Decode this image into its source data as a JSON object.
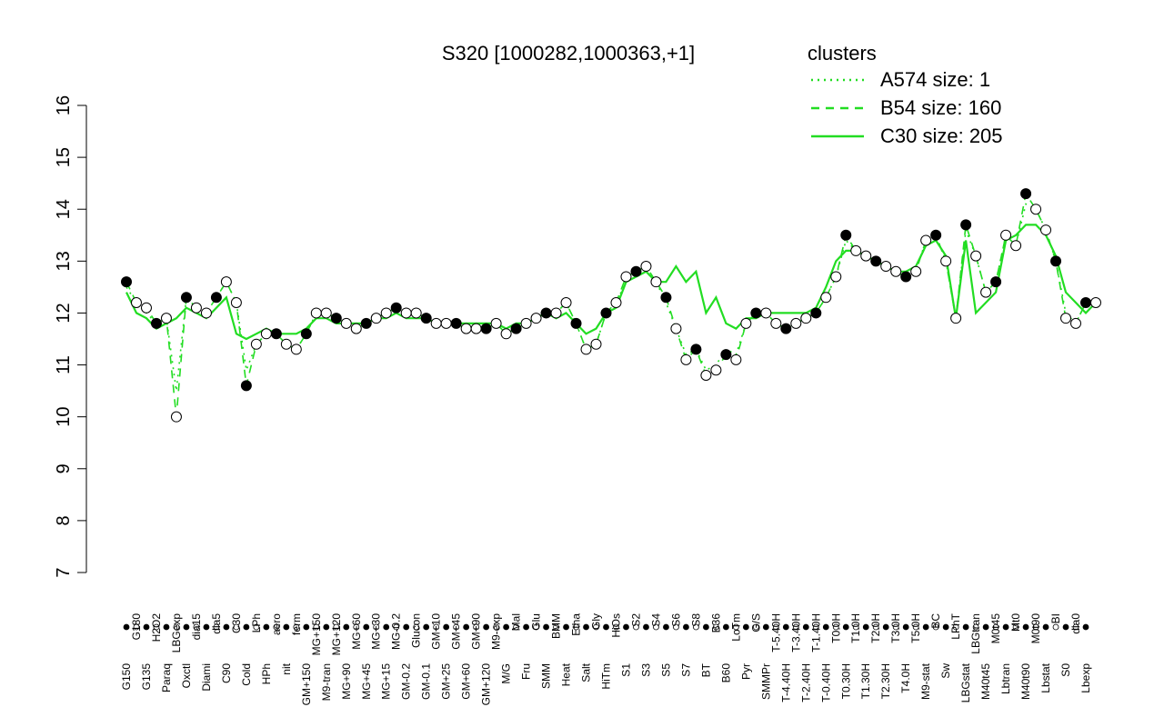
{
  "chart_data": {
    "type": "line",
    "title": "S320 [1000282,1000363,+1]",
    "xlabel": "",
    "ylabel": "",
    "ylim": [
      7,
      16
    ],
    "yticks": [
      7,
      8,
      9,
      10,
      11,
      12,
      13,
      14,
      15,
      16
    ],
    "grid": false,
    "legend": {
      "title": "clusters",
      "placement": "top-right",
      "color": "#22dd22",
      "entries": [
        {
          "label": "A574 size: 1",
          "style": "dotted"
        },
        {
          "label": "B54 size: 160",
          "style": "dashed"
        },
        {
          "label": "C30 size: 205",
          "style": "solid"
        }
      ]
    },
    "x_tick_labels": [
      "G150",
      "G180",
      "G135",
      "H2O2",
      "Paraq",
      "LBGexp",
      "Oxctl",
      "dia15",
      "Diami",
      "dia5",
      "C90",
      "C30",
      "Cold",
      "LPh",
      "HPh",
      "aero",
      "nit",
      "ferm",
      "GM+150",
      "MG+150",
      "M9-tran",
      "MG+120",
      "MG+90",
      "MG+60",
      "MG+45",
      "MG+30",
      "MG+15",
      "MG-0.2",
      "GM-0.2",
      "Glucon",
      "GM-0.1",
      "GM+10",
      "GM+25",
      "GM+45",
      "GM+60",
      "GM+90",
      "GM+120",
      "M9-exp",
      "M/G",
      "Mal",
      "Fru",
      "Glu",
      "SMM",
      "BMM",
      "Heat",
      "Etha",
      "Salt",
      "Gly",
      "HiTm",
      "HiOs",
      "S1",
      "S2",
      "S3",
      "S4",
      "S5",
      "S6",
      "S7",
      "S8",
      "BT",
      "B36",
      "B60",
      "LoTm",
      "Pyr",
      "G/S",
      "SMMPr",
      "T-5.40H",
      "T-4.40H",
      "T-3.40H",
      "T-2.40H",
      "T-1.40H",
      "T-0.40H",
      "T0.0H",
      "T0.30H",
      "T1.0H",
      "T1.30H",
      "T2.0H",
      "T2.30H",
      "T3.0H",
      "T4.0H",
      "T5.0H",
      "M9-stat",
      "BC",
      "Sw",
      "LPhT",
      "LBGstat",
      "LBGtran",
      "M40t45",
      "M0t45",
      "Lbtran",
      "Mt0",
      "M40t90",
      "M0t90",
      "Lbstat",
      "BI",
      "S0",
      "dia0",
      "Lbexp"
    ],
    "x": [
      0,
      1,
      2,
      3,
      4,
      5,
      6,
      7,
      8,
      9,
      10,
      11,
      12,
      13,
      14,
      15,
      16,
      17,
      18,
      19,
      20,
      21,
      22,
      23,
      24,
      25,
      26,
      27,
      28,
      29,
      30,
      31,
      32,
      33,
      34,
      35,
      36,
      37,
      38,
      39,
      40,
      41,
      42,
      43,
      44,
      45,
      46,
      47,
      48,
      49,
      50,
      51,
      52,
      53,
      54,
      55,
      56,
      57,
      58,
      59,
      60,
      61,
      62,
      63,
      64,
      65,
      66,
      67,
      68,
      69,
      70,
      71,
      72,
      73,
      74,
      75,
      76,
      77,
      78,
      79,
      80,
      81,
      82,
      83,
      84,
      85,
      86,
      87,
      88,
      89,
      90,
      91,
      92,
      93,
      94,
      95,
      96,
      97
    ],
    "series": [
      {
        "name": "A574 size: 1",
        "style": "dotted",
        "values": [
          12.5,
          12.2,
          12.0,
          11.8,
          11.9,
          10.5,
          12.3,
          12.1,
          12.0,
          12.3,
          12.6,
          12.2,
          10.9,
          11.4,
          11.6,
          11.6,
          11.4,
          11.3,
          11.6,
          12.0,
          12.0,
          11.9,
          11.8,
          11.7,
          11.8,
          11.9,
          12.0,
          12.1,
          12.0,
          12.0,
          11.9,
          11.8,
          11.8,
          11.8,
          11.7,
          11.7,
          11.7,
          11.8,
          11.6,
          11.7,
          11.8,
          11.9,
          12.0,
          12.0,
          12.2,
          11.8,
          11.3,
          11.4,
          12.0,
          12.2,
          12.6,
          12.7,
          12.8,
          12.6,
          12.2,
          11.7,
          11.2,
          11.3,
          10.9,
          11.0,
          11.3,
          11.2,
          11.8,
          12.0,
          12.0,
          11.8,
          11.7,
          11.8,
          11.9,
          12.0,
          12.3,
          12.7,
          13.4,
          13.2,
          13.1,
          13.0,
          12.9,
          12.8,
          12.7,
          12.8,
          13.4,
          13.5,
          13.0,
          11.9,
          13.6,
          13.1,
          12.4,
          12.6,
          13.5,
          13.3,
          14.1,
          14.0,
          13.6,
          13.0,
          12.0,
          11.8,
          12.2,
          12.2
        ]
      },
      {
        "name": "B54 size: 160",
        "style": "dashed",
        "values": [
          12.6,
          12.2,
          12.1,
          11.8,
          11.9,
          10.0,
          12.3,
          12.1,
          12.0,
          12.3,
          12.6,
          12.2,
          10.6,
          11.4,
          11.6,
          11.6,
          11.4,
          11.3,
          11.6,
          12.0,
          12.0,
          11.9,
          11.8,
          11.7,
          11.8,
          11.9,
          12.0,
          12.1,
          12.0,
          12.0,
          11.9,
          11.8,
          11.8,
          11.8,
          11.7,
          11.7,
          11.7,
          11.8,
          11.6,
          11.7,
          11.8,
          11.9,
          12.0,
          12.0,
          12.2,
          11.8,
          11.3,
          11.4,
          12.0,
          12.2,
          12.7,
          12.8,
          12.9,
          12.6,
          12.3,
          11.7,
          11.1,
          11.3,
          10.8,
          10.9,
          11.2,
          11.1,
          11.8,
          12.0,
          12.0,
          11.8,
          11.7,
          11.8,
          11.9,
          12.0,
          12.3,
          12.7,
          13.5,
          13.2,
          13.1,
          13.0,
          12.9,
          12.8,
          12.7,
          12.8,
          13.4,
          13.5,
          13.0,
          11.9,
          13.7,
          13.1,
          12.4,
          12.6,
          13.5,
          13.3,
          14.3,
          14.0,
          13.6,
          13.0,
          11.9,
          11.8,
          12.2,
          12.2
        ]
      },
      {
        "name": "C30 size: 205",
        "style": "solid",
        "values": [
          12.4,
          12.0,
          11.9,
          11.7,
          11.8,
          11.9,
          12.1,
          12.0,
          11.9,
          12.1,
          12.3,
          11.6,
          11.5,
          11.6,
          11.7,
          11.6,
          11.6,
          11.6,
          11.7,
          11.9,
          11.9,
          11.8,
          11.8,
          11.8,
          11.8,
          11.9,
          11.9,
          12.0,
          11.9,
          11.9,
          11.9,
          11.8,
          11.8,
          11.8,
          11.8,
          11.8,
          11.8,
          11.8,
          11.7,
          11.8,
          11.8,
          11.9,
          12.0,
          11.9,
          12.0,
          11.8,
          11.6,
          11.7,
          12.0,
          12.1,
          12.6,
          12.7,
          12.8,
          12.6,
          12.6,
          12.9,
          12.6,
          12.8,
          12.0,
          12.3,
          11.8,
          11.7,
          11.9,
          11.9,
          12.0,
          12.0,
          12.0,
          12.0,
          12.0,
          12.1,
          12.5,
          13.0,
          13.2,
          13.2,
          13.1,
          13.0,
          12.9,
          12.8,
          12.8,
          12.9,
          13.3,
          13.4,
          13.1,
          11.9,
          13.4,
          12.0,
          12.2,
          12.4,
          13.4,
          13.5,
          13.7,
          13.7,
          13.5,
          13.1,
          12.4,
          12.2,
          12.0,
          12.2
        ]
      }
    ]
  }
}
